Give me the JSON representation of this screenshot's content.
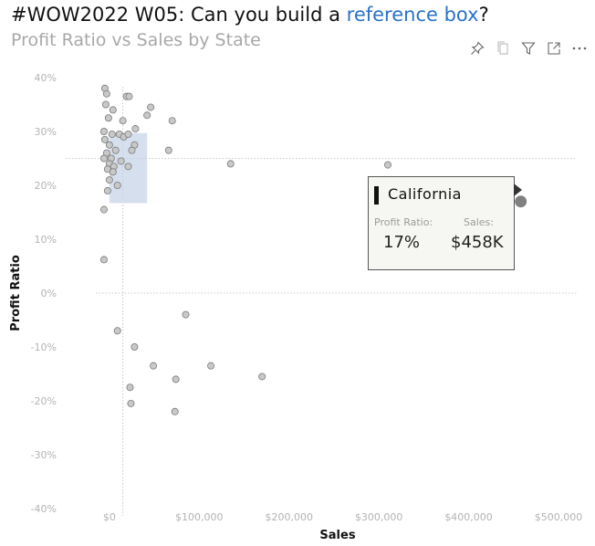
{
  "header": {
    "title_prefix": "#WOW2022 W05: Can you build a ",
    "title_link": "reference box",
    "title_suffix": "?",
    "subtitle": "Profit Ratio vs Sales by State",
    "link_color": "#2a73c7"
  },
  "toolbar": {
    "items": [
      {
        "name": "pin-icon"
      },
      {
        "name": "copy-icon"
      },
      {
        "name": "filter-icon"
      },
      {
        "name": "focus-mode-icon"
      },
      {
        "name": "more-options-icon"
      }
    ]
  },
  "tooltip": {
    "state": "California",
    "ratio_label": "Profit Ratio:",
    "sales_label": "Sales:",
    "ratio_value": "17%",
    "sales_value": "$458K"
  },
  "chart_data": {
    "type": "scatter",
    "title": "",
    "xlabel": "Sales",
    "ylabel": "Profit Ratio",
    "xlim": [
      -10000,
      500000
    ],
    "ylim": [
      -0.4,
      0.4
    ],
    "x_ticks": [
      0,
      100000,
      200000,
      300000,
      400000,
      500000
    ],
    "x_tick_labels": [
      "$0",
      "$100,000",
      "$200,000",
      "$300,000",
      "$400,000",
      "$500,000"
    ],
    "y_ticks": [
      0.4,
      0.3,
      0.2,
      0.1,
      0.0,
      -0.1,
      -0.2,
      -0.3,
      -0.4
    ],
    "y_tick_labels": [
      "40%",
      "30%",
      "20%",
      "10%",
      "0%",
      "-10%",
      "-20%",
      "-30%",
      "-40%"
    ],
    "reference_lines": {
      "x_sales": 15000,
      "y_ratio": 0.25
    },
    "reference_box": {
      "x_min": 0,
      "x_max": 42000,
      "y_min": 0.167,
      "y_max": 0.297
    },
    "marker_color": "#c8c8c8",
    "highlight_color": "#808080",
    "reference_box_color": "#c5d2e6",
    "highlighted": {
      "label": "California",
      "x": 458000,
      "y": 0.17
    },
    "points": [
      {
        "x": -4000,
        "y": 0.35
      },
      {
        "x": -5000,
        "y": 0.38
      },
      {
        "x": -3000,
        "y": 0.37
      },
      {
        "x": 19000,
        "y": 0.365
      },
      {
        "x": 22000,
        "y": 0.365
      },
      {
        "x": 4000,
        "y": 0.34
      },
      {
        "x": 46000,
        "y": 0.345
      },
      {
        "x": -1000,
        "y": 0.325
      },
      {
        "x": 15000,
        "y": 0.32
      },
      {
        "x": 42000,
        "y": 0.33
      },
      {
        "x": 70000,
        "y": 0.32
      },
      {
        "x": -6000,
        "y": 0.3
      },
      {
        "x": 29000,
        "y": 0.305
      },
      {
        "x": 3000,
        "y": 0.295
      },
      {
        "x": 11000,
        "y": 0.295
      },
      {
        "x": 16000,
        "y": 0.29
      },
      {
        "x": 21000,
        "y": 0.295
      },
      {
        "x": -5000,
        "y": 0.285
      },
      {
        "x": 0,
        "y": 0.275
      },
      {
        "x": 28000,
        "y": 0.275
      },
      {
        "x": 7000,
        "y": 0.265
      },
      {
        "x": 25000,
        "y": 0.265
      },
      {
        "x": 66000,
        "y": 0.265
      },
      {
        "x": -3000,
        "y": 0.26
      },
      {
        "x": 2000,
        "y": 0.25
      },
      {
        "x": -6000,
        "y": 0.25
      },
      {
        "x": 13000,
        "y": 0.245
      },
      {
        "x": 0,
        "y": 0.24
      },
      {
        "x": 5000,
        "y": 0.235
      },
      {
        "x": 21000,
        "y": 0.235
      },
      {
        "x": 135000,
        "y": 0.24
      },
      {
        "x": 310000,
        "y": 0.238
      },
      {
        "x": -2000,
        "y": 0.23
      },
      {
        "x": 4000,
        "y": 0.225
      },
      {
        "x": 0,
        "y": 0.21
      },
      {
        "x": 9000,
        "y": 0.2
      },
      {
        "x": -2000,
        "y": 0.19
      },
      {
        "x": -6000,
        "y": 0.155
      },
      {
        "x": -6000,
        "y": 0.062
      },
      {
        "x": 85000,
        "y": -0.04
      },
      {
        "x": 9000,
        "y": -0.07
      },
      {
        "x": 28000,
        "y": -0.1
      },
      {
        "x": 49000,
        "y": -0.135
      },
      {
        "x": 113000,
        "y": -0.135
      },
      {
        "x": 170000,
        "y": -0.155
      },
      {
        "x": 74000,
        "y": -0.16
      },
      {
        "x": 23000,
        "y": -0.175
      },
      {
        "x": 24000,
        "y": -0.205
      },
      {
        "x": 73000,
        "y": -0.22
      }
    ]
  }
}
